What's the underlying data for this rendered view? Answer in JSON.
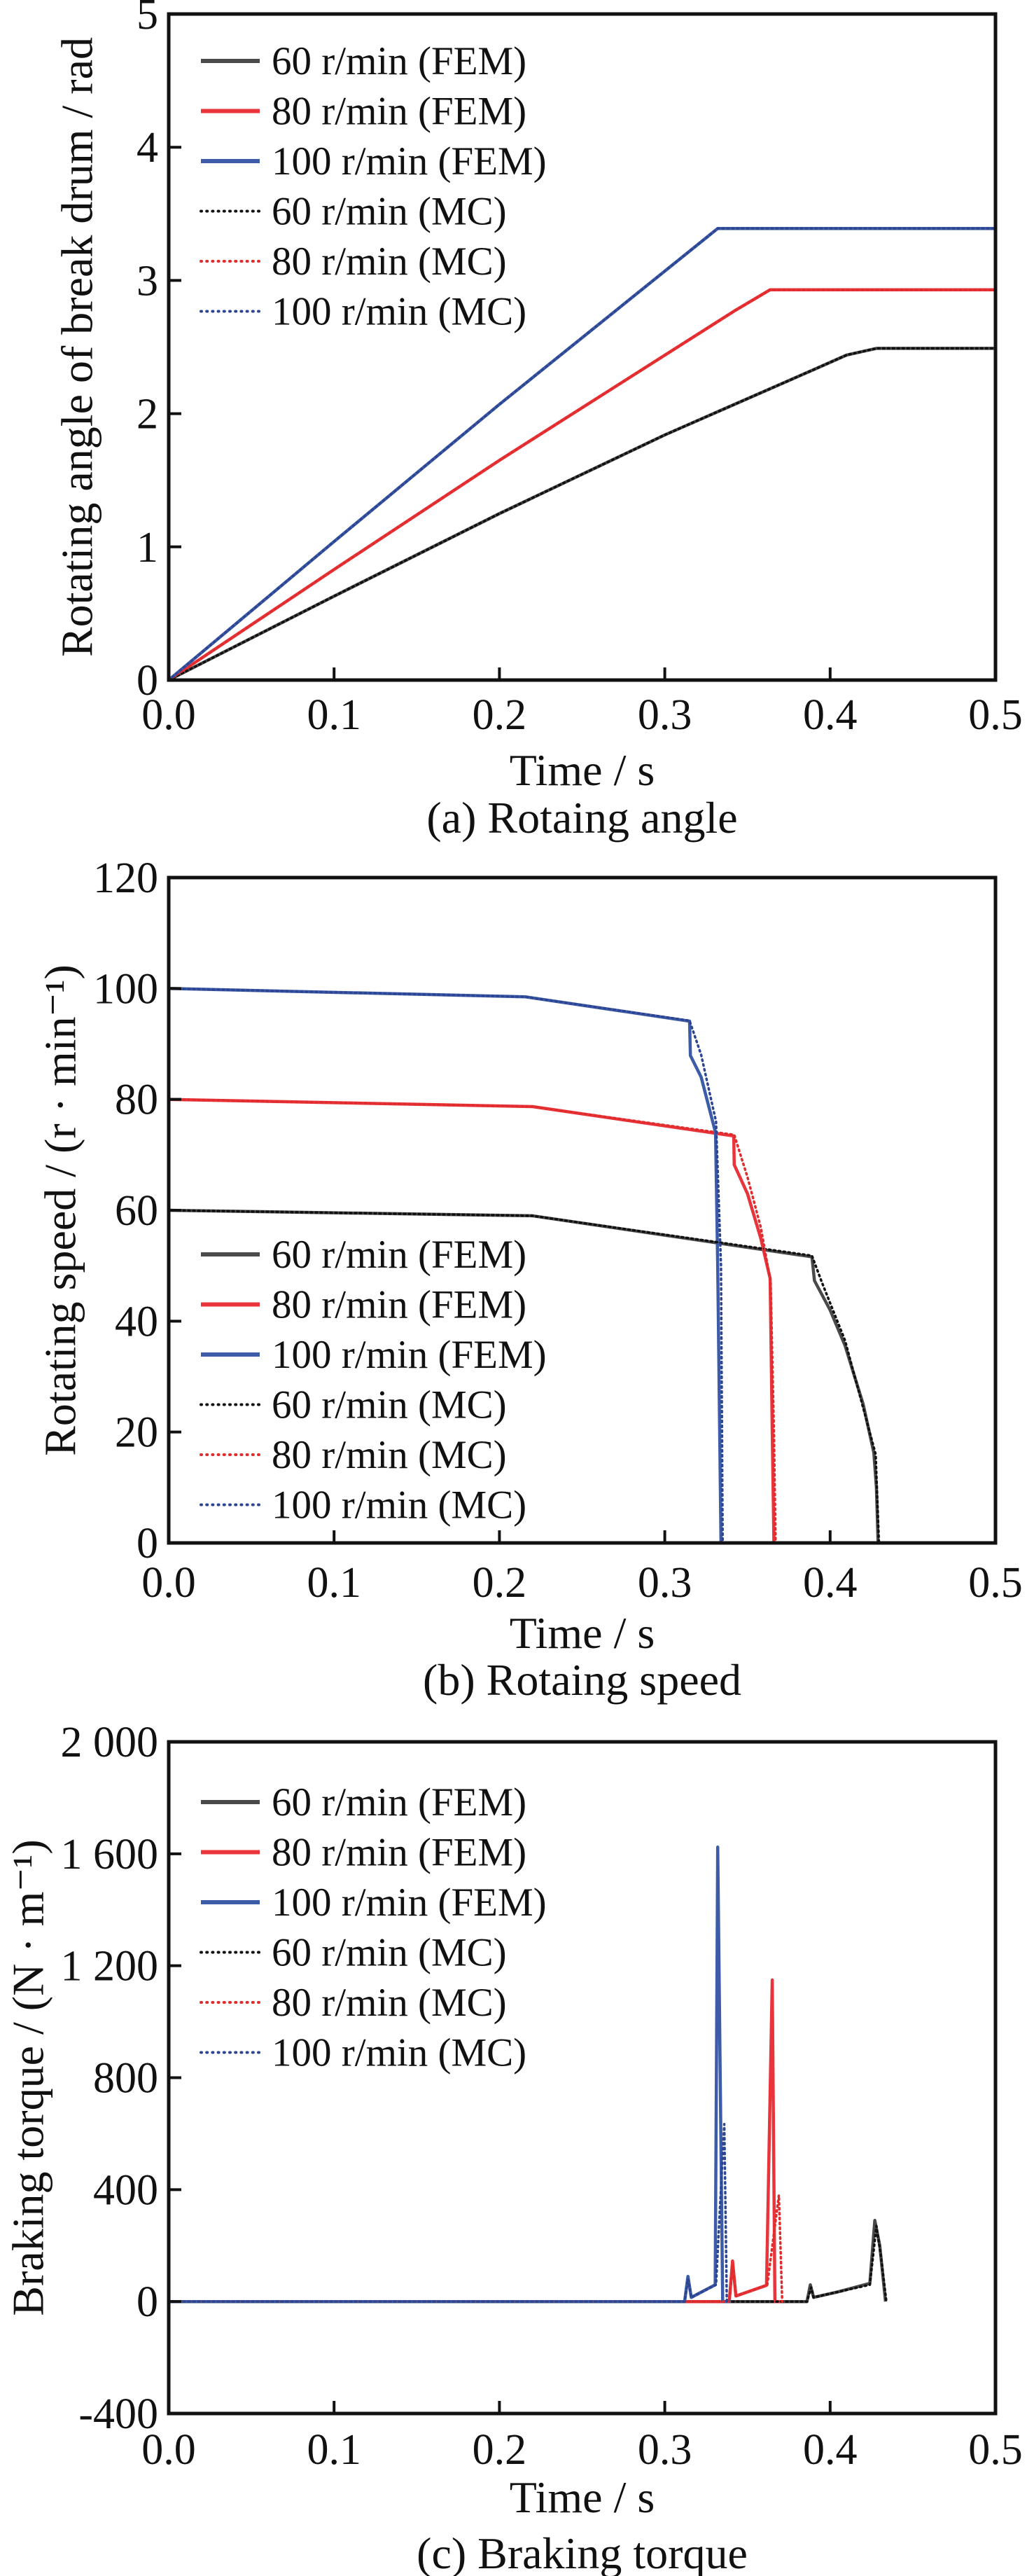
{
  "chart_data": [
    {
      "type": "line",
      "caption": "(a) Rotaing angle",
      "xlabel": "Time / s",
      "ylabel": "Rotating angle of break drum / rad",
      "xlim": [
        0,
        0.5
      ],
      "ylim": [
        0,
        5
      ],
      "xticks": [
        0,
        0.1,
        0.2,
        0.3,
        0.4,
        0.5
      ],
      "xtick_labels": [
        "0.0",
        "0.1",
        "0.2",
        "0.3",
        "0.4",
        "0.5"
      ],
      "yticks": [
        0,
        1,
        2,
        3,
        4,
        5
      ],
      "ytick_labels": [
        "0",
        "1",
        "2",
        "3",
        "4",
        "5"
      ],
      "grid": false,
      "legend_position": "top-left",
      "series": [
        {
          "name": "60 r/min (FEM)",
          "color": "#4a4a4a",
          "style": "solid",
          "points": [
            [
              0,
              0
            ],
            [
              0.1,
              0.63
            ],
            [
              0.2,
              1.25
            ],
            [
              0.3,
              1.84
            ],
            [
              0.39,
              2.33
            ],
            [
              0.41,
              2.44
            ],
            [
              0.428,
              2.49
            ],
            [
              0.5,
              2.49
            ]
          ]
        },
        {
          "name": "80 r/min (FEM)",
          "color": "#e8343a",
          "style": "solid",
          "points": [
            [
              0,
              0
            ],
            [
              0.1,
              0.83
            ],
            [
              0.2,
              1.65
            ],
            [
              0.342,
              2.77
            ],
            [
              0.3637,
              2.93
            ],
            [
              0.5,
              2.93
            ]
          ]
        },
        {
          "name": "100 r/min (FEM)",
          "color": "#3d5ca8",
          "style": "solid",
          "points": [
            [
              0,
              0
            ],
            [
              0.1,
              1.04
            ],
            [
              0.2,
              2.07
            ],
            [
              0.315,
              3.22
            ],
            [
              0.332,
              3.39
            ],
            [
              0.5,
              3.39
            ]
          ]
        },
        {
          "name": "60 r/min (MC)",
          "color": "#111111",
          "style": "dotted",
          "points": [
            [
              0,
              0
            ],
            [
              0.1,
              0.63
            ],
            [
              0.2,
              1.25
            ],
            [
              0.3,
              1.84
            ],
            [
              0.39,
              2.33
            ],
            [
              0.41,
              2.44
            ],
            [
              0.428,
              2.49
            ],
            [
              0.5,
              2.49
            ]
          ]
        },
        {
          "name": "80 r/min (MC)",
          "color": "#e02c2c",
          "style": "dotted",
          "points": [
            [
              0,
              0
            ],
            [
              0.1,
              0.83
            ],
            [
              0.2,
              1.65
            ],
            [
              0.342,
              2.77
            ],
            [
              0.3637,
              2.93
            ],
            [
              0.5,
              2.93
            ]
          ]
        },
        {
          "name": "100 r/min (MC)",
          "color": "#2d4592",
          "style": "dotted",
          "points": [
            [
              0,
              0
            ],
            [
              0.1,
              1.04
            ],
            [
              0.2,
              2.07
            ],
            [
              0.315,
              3.22
            ],
            [
              0.332,
              3.39
            ],
            [
              0.5,
              3.39
            ]
          ]
        }
      ]
    },
    {
      "type": "line",
      "caption": "(b) Rotaing speed",
      "xlabel": "Time / s",
      "ylabel": "Rotating speed / (r · min⁻¹)",
      "xlim": [
        0,
        0.5
      ],
      "ylim": [
        0,
        120
      ],
      "xticks": [
        0,
        0.1,
        0.2,
        0.3,
        0.4,
        0.5
      ],
      "xtick_labels": [
        "0.0",
        "0.1",
        "0.2",
        "0.3",
        "0.4",
        "0.5"
      ],
      "yticks": [
        0,
        20,
        40,
        60,
        80,
        100,
        120
      ],
      "ytick_labels": [
        "0",
        "20",
        "40",
        "60",
        "80",
        "100",
        "120"
      ],
      "grid": false,
      "legend_position": "bottom-left",
      "series": [
        {
          "name": "60 r/min (FEM)",
          "color": "#4a4a4a",
          "style": "solid",
          "points": [
            [
              0,
              60
            ],
            [
              0.22,
              59
            ],
            [
              0.389,
              51.6
            ],
            [
              0.3905,
              47.3
            ],
            [
              0.4,
              42
            ],
            [
              0.409,
              35.6
            ],
            [
              0.42,
              25
            ],
            [
              0.4264,
              16.3
            ],
            [
              0.428,
              10
            ],
            [
              0.429,
              0
            ]
          ]
        },
        {
          "name": "80 r/min (FEM)",
          "color": "#e8343a",
          "style": "solid",
          "points": [
            [
              0,
              80
            ],
            [
              0.22,
              78.7
            ],
            [
              0.3417,
              73.4
            ],
            [
              0.342,
              68.2
            ],
            [
              0.35,
              63
            ],
            [
              0.358,
              55
            ],
            [
              0.3637,
              47.7
            ],
            [
              0.365,
              20
            ],
            [
              0.366,
              0
            ]
          ]
        },
        {
          "name": "100 r/min (FEM)",
          "color": "#3d5ca8",
          "style": "solid",
          "points": [
            [
              0,
              100
            ],
            [
              0.2155,
              98.5
            ],
            [
              0.315,
              94.1
            ],
            [
              0.3155,
              87.9
            ],
            [
              0.322,
              84
            ],
            [
              0.3307,
              74
            ],
            [
              0.332,
              50
            ],
            [
              0.334,
              0
            ]
          ]
        },
        {
          "name": "60 r/min (MC)",
          "color": "#111111",
          "style": "dotted",
          "points": [
            [
              0,
              60
            ],
            [
              0.22,
              59
            ],
            [
              0.389,
              51.8
            ],
            [
              0.395,
              47
            ],
            [
              0.409,
              36.5
            ],
            [
              0.4275,
              16
            ],
            [
              0.4295,
              0
            ]
          ]
        },
        {
          "name": "80 r/min (MC)",
          "color": "#e02c2c",
          "style": "dotted",
          "points": [
            [
              0,
              80
            ],
            [
              0.22,
              78.7
            ],
            [
              0.342,
              73.6
            ],
            [
              0.35,
              66
            ],
            [
              0.358,
              57
            ],
            [
              0.364,
              47
            ],
            [
              0.366,
              20
            ],
            [
              0.367,
              0
            ]
          ]
        },
        {
          "name": "100 r/min (MC)",
          "color": "#2d4592",
          "style": "dotted",
          "points": [
            [
              0,
              100
            ],
            [
              0.2155,
              98.5
            ],
            [
              0.315,
              94.2
            ],
            [
              0.322,
              88
            ],
            [
              0.331,
              76
            ],
            [
              0.334,
              50
            ],
            [
              0.335,
              0
            ]
          ]
        }
      ]
    },
    {
      "type": "line",
      "caption": "(c) Braking torque",
      "xlabel": "Time / s",
      "ylabel": "Braking torque / (N · m⁻¹)",
      "xlim": [
        0,
        0.5
      ],
      "ylim": [
        -400,
        2000
      ],
      "xticks": [
        0,
        0.1,
        0.2,
        0.3,
        0.4,
        0.5
      ],
      "xtick_labels": [
        "0.0",
        "0.1",
        "0.2",
        "0.3",
        "0.4",
        "0.5"
      ],
      "yticks": [
        -400,
        0,
        400,
        800,
        1200,
        1600,
        2000
      ],
      "ytick_labels": [
        "-400",
        "0",
        "400",
        "800",
        "1 200",
        "1 600",
        "2 000"
      ],
      "grid": false,
      "legend_position": "top-left",
      "series": [
        {
          "name": "60 r/min (FEM)",
          "color": "#4a4a4a",
          "style": "solid",
          "points": [
            [
              0,
              0
            ],
            [
              0.386,
              0
            ],
            [
              0.388,
              60
            ],
            [
              0.39,
              15
            ],
            [
              0.405,
              35
            ],
            [
              0.424,
              65
            ],
            [
              0.427,
              290
            ],
            [
              0.43,
              200
            ],
            [
              0.4335,
              0
            ]
          ]
        },
        {
          "name": "80 r/min (FEM)",
          "color": "#e8343a",
          "style": "solid",
          "points": [
            [
              0,
              0
            ],
            [
              0.339,
              0
            ],
            [
              0.341,
              145
            ],
            [
              0.343,
              20
            ],
            [
              0.3615,
              58
            ],
            [
              0.365,
              1149
            ],
            [
              0.3666,
              0
            ],
            [
              0.37,
              0
            ]
          ]
        },
        {
          "name": "100 r/min (FEM)",
          "color": "#3d5ca8",
          "style": "solid",
          "points": [
            [
              0,
              0
            ],
            [
              0.312,
              0
            ],
            [
              0.314,
              90
            ],
            [
              0.316,
              15
            ],
            [
              0.3305,
              60
            ],
            [
              0.332,
              1624
            ],
            [
              0.335,
              0
            ],
            [
              0.34,
              0
            ]
          ]
        },
        {
          "name": "60 r/min (MC)",
          "color": "#111111",
          "style": "dotted",
          "points": [
            [
              0,
              0
            ],
            [
              0.386,
              0
            ],
            [
              0.3885,
              50
            ],
            [
              0.39,
              15
            ],
            [
              0.405,
              35
            ],
            [
              0.424,
              60
            ],
            [
              0.428,
              270
            ],
            [
              0.431,
              150
            ],
            [
              0.434,
              0
            ]
          ]
        },
        {
          "name": "80 r/min (MC)",
          "color": "#e02c2c",
          "style": "dotted",
          "points": [
            [
              0,
              0
            ],
            [
              0.339,
              0
            ],
            [
              0.341,
              130
            ],
            [
              0.343,
              20
            ],
            [
              0.362,
              60
            ],
            [
              0.369,
              380
            ],
            [
              0.371,
              0
            ]
          ]
        },
        {
          "name": "100 r/min (MC)",
          "color": "#2d4592",
          "style": "dotted",
          "points": [
            [
              0,
              0
            ],
            [
              0.312,
              0
            ],
            [
              0.314,
              80
            ],
            [
              0.316,
              15
            ],
            [
              0.331,
              60
            ],
            [
              0.336,
              634
            ],
            [
              0.3375,
              0
            ]
          ]
        }
      ]
    }
  ]
}
